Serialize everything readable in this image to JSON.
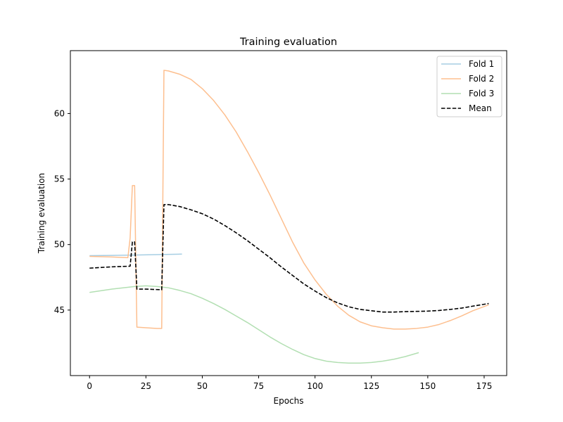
{
  "chart_data": {
    "type": "line",
    "title": "Training evaluation",
    "xlabel": "Epochs",
    "ylabel": "Training evaluation",
    "xlim": [
      -8.5,
      185
    ],
    "ylim": [
      40.0,
      64.8
    ],
    "xticks": [
      0,
      25,
      50,
      75,
      100,
      125,
      150,
      175
    ],
    "yticks": [
      45,
      50,
      55,
      60
    ],
    "grid": false,
    "legend_position": "top-right",
    "series": [
      {
        "name": "Fold 1",
        "color": "#a6cee3",
        "style": "solid",
        "points": [
          [
            0,
            49.15
          ],
          [
            10,
            49.17
          ],
          [
            20,
            49.2
          ],
          [
            30,
            49.23
          ],
          [
            41,
            49.27
          ]
        ]
      },
      {
        "name": "Fold 2",
        "color": "#fdbf8f",
        "style": "solid",
        "points": [
          [
            0,
            49.1
          ],
          [
            10,
            49.05
          ],
          [
            17,
            49.0
          ],
          [
            18,
            50.5
          ],
          [
            19,
            54.5
          ],
          [
            20,
            54.5
          ],
          [
            21,
            43.7
          ],
          [
            25,
            43.65
          ],
          [
            30,
            43.6
          ],
          [
            32,
            43.6
          ],
          [
            33,
            63.3
          ],
          [
            35,
            63.25
          ],
          [
            40,
            63.0
          ],
          [
            45,
            62.6
          ],
          [
            50,
            61.9
          ],
          [
            55,
            61.0
          ],
          [
            60,
            59.9
          ],
          [
            65,
            58.6
          ],
          [
            70,
            57.1
          ],
          [
            75,
            55.5
          ],
          [
            80,
            53.8
          ],
          [
            85,
            52.0
          ],
          [
            90,
            50.2
          ],
          [
            95,
            48.6
          ],
          [
            100,
            47.3
          ],
          [
            105,
            46.2
          ],
          [
            110,
            45.3
          ],
          [
            115,
            44.6
          ],
          [
            120,
            44.1
          ],
          [
            125,
            43.8
          ],
          [
            130,
            43.65
          ],
          [
            135,
            43.55
          ],
          [
            140,
            43.55
          ],
          [
            145,
            43.6
          ],
          [
            150,
            43.7
          ],
          [
            155,
            43.9
          ],
          [
            160,
            44.2
          ],
          [
            165,
            44.55
          ],
          [
            170,
            44.95
          ],
          [
            177,
            45.4
          ]
        ]
      },
      {
        "name": "Fold 3",
        "color": "#b2dfb2",
        "style": "solid",
        "points": [
          [
            0,
            46.35
          ],
          [
            10,
            46.6
          ],
          [
            20,
            46.8
          ],
          [
            25,
            46.85
          ],
          [
            30,
            46.8
          ],
          [
            35,
            46.7
          ],
          [
            40,
            46.5
          ],
          [
            45,
            46.25
          ],
          [
            50,
            45.9
          ],
          [
            55,
            45.5
          ],
          [
            60,
            45.05
          ],
          [
            65,
            44.55
          ],
          [
            70,
            44.05
          ],
          [
            75,
            43.5
          ],
          [
            80,
            42.95
          ],
          [
            85,
            42.45
          ],
          [
            90,
            42.0
          ],
          [
            95,
            41.6
          ],
          [
            100,
            41.3
          ],
          [
            105,
            41.1
          ],
          [
            110,
            41.0
          ],
          [
            115,
            40.95
          ],
          [
            120,
            40.95
          ],
          [
            125,
            41.0
          ],
          [
            130,
            41.1
          ],
          [
            135,
            41.25
          ],
          [
            140,
            41.45
          ],
          [
            146,
            41.75
          ]
        ]
      },
      {
        "name": "Mean",
        "color": "#000000",
        "style": "dashed",
        "points": [
          [
            0,
            48.2
          ],
          [
            10,
            48.3
          ],
          [
            18,
            48.35
          ],
          [
            19,
            50.2
          ],
          [
            20,
            50.2
          ],
          [
            21,
            46.6
          ],
          [
            25,
            46.6
          ],
          [
            32,
            46.55
          ],
          [
            33,
            53.05
          ],
          [
            35,
            53.05
          ],
          [
            40,
            52.9
          ],
          [
            45,
            52.65
          ],
          [
            50,
            52.35
          ],
          [
            55,
            51.95
          ],
          [
            60,
            51.45
          ],
          [
            65,
            50.9
          ],
          [
            70,
            50.3
          ],
          [
            75,
            49.65
          ],
          [
            80,
            49.0
          ],
          [
            85,
            48.3
          ],
          [
            90,
            47.65
          ],
          [
            95,
            47.0
          ],
          [
            100,
            46.45
          ],
          [
            105,
            45.95
          ],
          [
            110,
            45.55
          ],
          [
            115,
            45.25
          ],
          [
            120,
            45.05
          ],
          [
            125,
            44.95
          ],
          [
            130,
            44.85
          ],
          [
            135,
            44.85
          ],
          [
            140,
            44.88
          ],
          [
            145,
            44.9
          ],
          [
            150,
            44.92
          ],
          [
            155,
            44.97
          ],
          [
            160,
            45.05
          ],
          [
            165,
            45.15
          ],
          [
            170,
            45.3
          ],
          [
            177,
            45.5
          ]
        ]
      }
    ]
  }
}
